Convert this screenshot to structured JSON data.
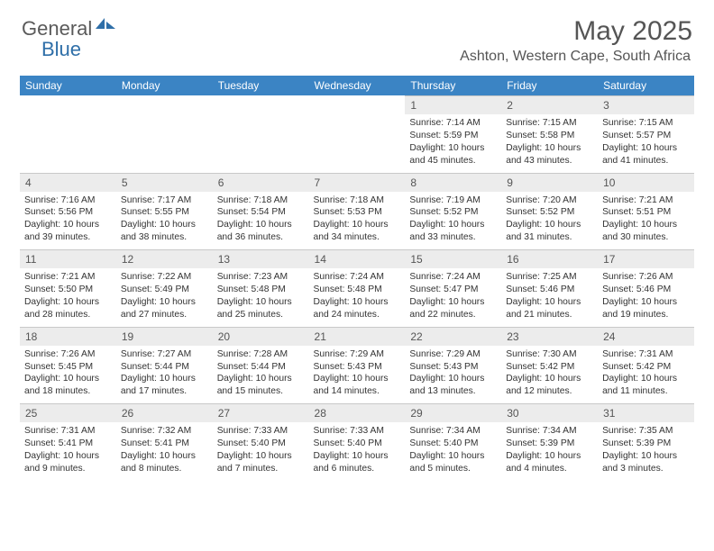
{
  "logo": {
    "part1": "General",
    "part2": "Blue"
  },
  "title": "May 2025",
  "location": "Ashton, Western Cape, South Africa",
  "dayNames": [
    "Sunday",
    "Monday",
    "Tuesday",
    "Wednesday",
    "Thursday",
    "Friday",
    "Saturday"
  ],
  "colors": {
    "header_bg": "#3b84c4",
    "header_fg": "#ffffff",
    "daynum_bg": "#ececec",
    "border": "#c8c8c8",
    "logo_gray": "#5a5a5a",
    "logo_blue": "#2f6fa8"
  },
  "weeks": [
    [
      null,
      null,
      null,
      null,
      {
        "n": "1",
        "sr": "7:14 AM",
        "ss": "5:59 PM",
        "dl": "10 hours and 45 minutes."
      },
      {
        "n": "2",
        "sr": "7:15 AM",
        "ss": "5:58 PM",
        "dl": "10 hours and 43 minutes."
      },
      {
        "n": "3",
        "sr": "7:15 AM",
        "ss": "5:57 PM",
        "dl": "10 hours and 41 minutes."
      }
    ],
    [
      {
        "n": "4",
        "sr": "7:16 AM",
        "ss": "5:56 PM",
        "dl": "10 hours and 39 minutes."
      },
      {
        "n": "5",
        "sr": "7:17 AM",
        "ss": "5:55 PM",
        "dl": "10 hours and 38 minutes."
      },
      {
        "n": "6",
        "sr": "7:18 AM",
        "ss": "5:54 PM",
        "dl": "10 hours and 36 minutes."
      },
      {
        "n": "7",
        "sr": "7:18 AM",
        "ss": "5:53 PM",
        "dl": "10 hours and 34 minutes."
      },
      {
        "n": "8",
        "sr": "7:19 AM",
        "ss": "5:52 PM",
        "dl": "10 hours and 33 minutes."
      },
      {
        "n": "9",
        "sr": "7:20 AM",
        "ss": "5:52 PM",
        "dl": "10 hours and 31 minutes."
      },
      {
        "n": "10",
        "sr": "7:21 AM",
        "ss": "5:51 PM",
        "dl": "10 hours and 30 minutes."
      }
    ],
    [
      {
        "n": "11",
        "sr": "7:21 AM",
        "ss": "5:50 PM",
        "dl": "10 hours and 28 minutes."
      },
      {
        "n": "12",
        "sr": "7:22 AM",
        "ss": "5:49 PM",
        "dl": "10 hours and 27 minutes."
      },
      {
        "n": "13",
        "sr": "7:23 AM",
        "ss": "5:48 PM",
        "dl": "10 hours and 25 minutes."
      },
      {
        "n": "14",
        "sr": "7:24 AM",
        "ss": "5:48 PM",
        "dl": "10 hours and 24 minutes."
      },
      {
        "n": "15",
        "sr": "7:24 AM",
        "ss": "5:47 PM",
        "dl": "10 hours and 22 minutes."
      },
      {
        "n": "16",
        "sr": "7:25 AM",
        "ss": "5:46 PM",
        "dl": "10 hours and 21 minutes."
      },
      {
        "n": "17",
        "sr": "7:26 AM",
        "ss": "5:46 PM",
        "dl": "10 hours and 19 minutes."
      }
    ],
    [
      {
        "n": "18",
        "sr": "7:26 AM",
        "ss": "5:45 PM",
        "dl": "10 hours and 18 minutes."
      },
      {
        "n": "19",
        "sr": "7:27 AM",
        "ss": "5:44 PM",
        "dl": "10 hours and 17 minutes."
      },
      {
        "n": "20",
        "sr": "7:28 AM",
        "ss": "5:44 PM",
        "dl": "10 hours and 15 minutes."
      },
      {
        "n": "21",
        "sr": "7:29 AM",
        "ss": "5:43 PM",
        "dl": "10 hours and 14 minutes."
      },
      {
        "n": "22",
        "sr": "7:29 AM",
        "ss": "5:43 PM",
        "dl": "10 hours and 13 minutes."
      },
      {
        "n": "23",
        "sr": "7:30 AM",
        "ss": "5:42 PM",
        "dl": "10 hours and 12 minutes."
      },
      {
        "n": "24",
        "sr": "7:31 AM",
        "ss": "5:42 PM",
        "dl": "10 hours and 11 minutes."
      }
    ],
    [
      {
        "n": "25",
        "sr": "7:31 AM",
        "ss": "5:41 PM",
        "dl": "10 hours and 9 minutes."
      },
      {
        "n": "26",
        "sr": "7:32 AM",
        "ss": "5:41 PM",
        "dl": "10 hours and 8 minutes."
      },
      {
        "n": "27",
        "sr": "7:33 AM",
        "ss": "5:40 PM",
        "dl": "10 hours and 7 minutes."
      },
      {
        "n": "28",
        "sr": "7:33 AM",
        "ss": "5:40 PM",
        "dl": "10 hours and 6 minutes."
      },
      {
        "n": "29",
        "sr": "7:34 AM",
        "ss": "5:40 PM",
        "dl": "10 hours and 5 minutes."
      },
      {
        "n": "30",
        "sr": "7:34 AM",
        "ss": "5:39 PM",
        "dl": "10 hours and 4 minutes."
      },
      {
        "n": "31",
        "sr": "7:35 AM",
        "ss": "5:39 PM",
        "dl": "10 hours and 3 minutes."
      }
    ]
  ],
  "labels": {
    "sunrise": "Sunrise: ",
    "sunset": "Sunset: ",
    "daylight": "Daylight: "
  }
}
